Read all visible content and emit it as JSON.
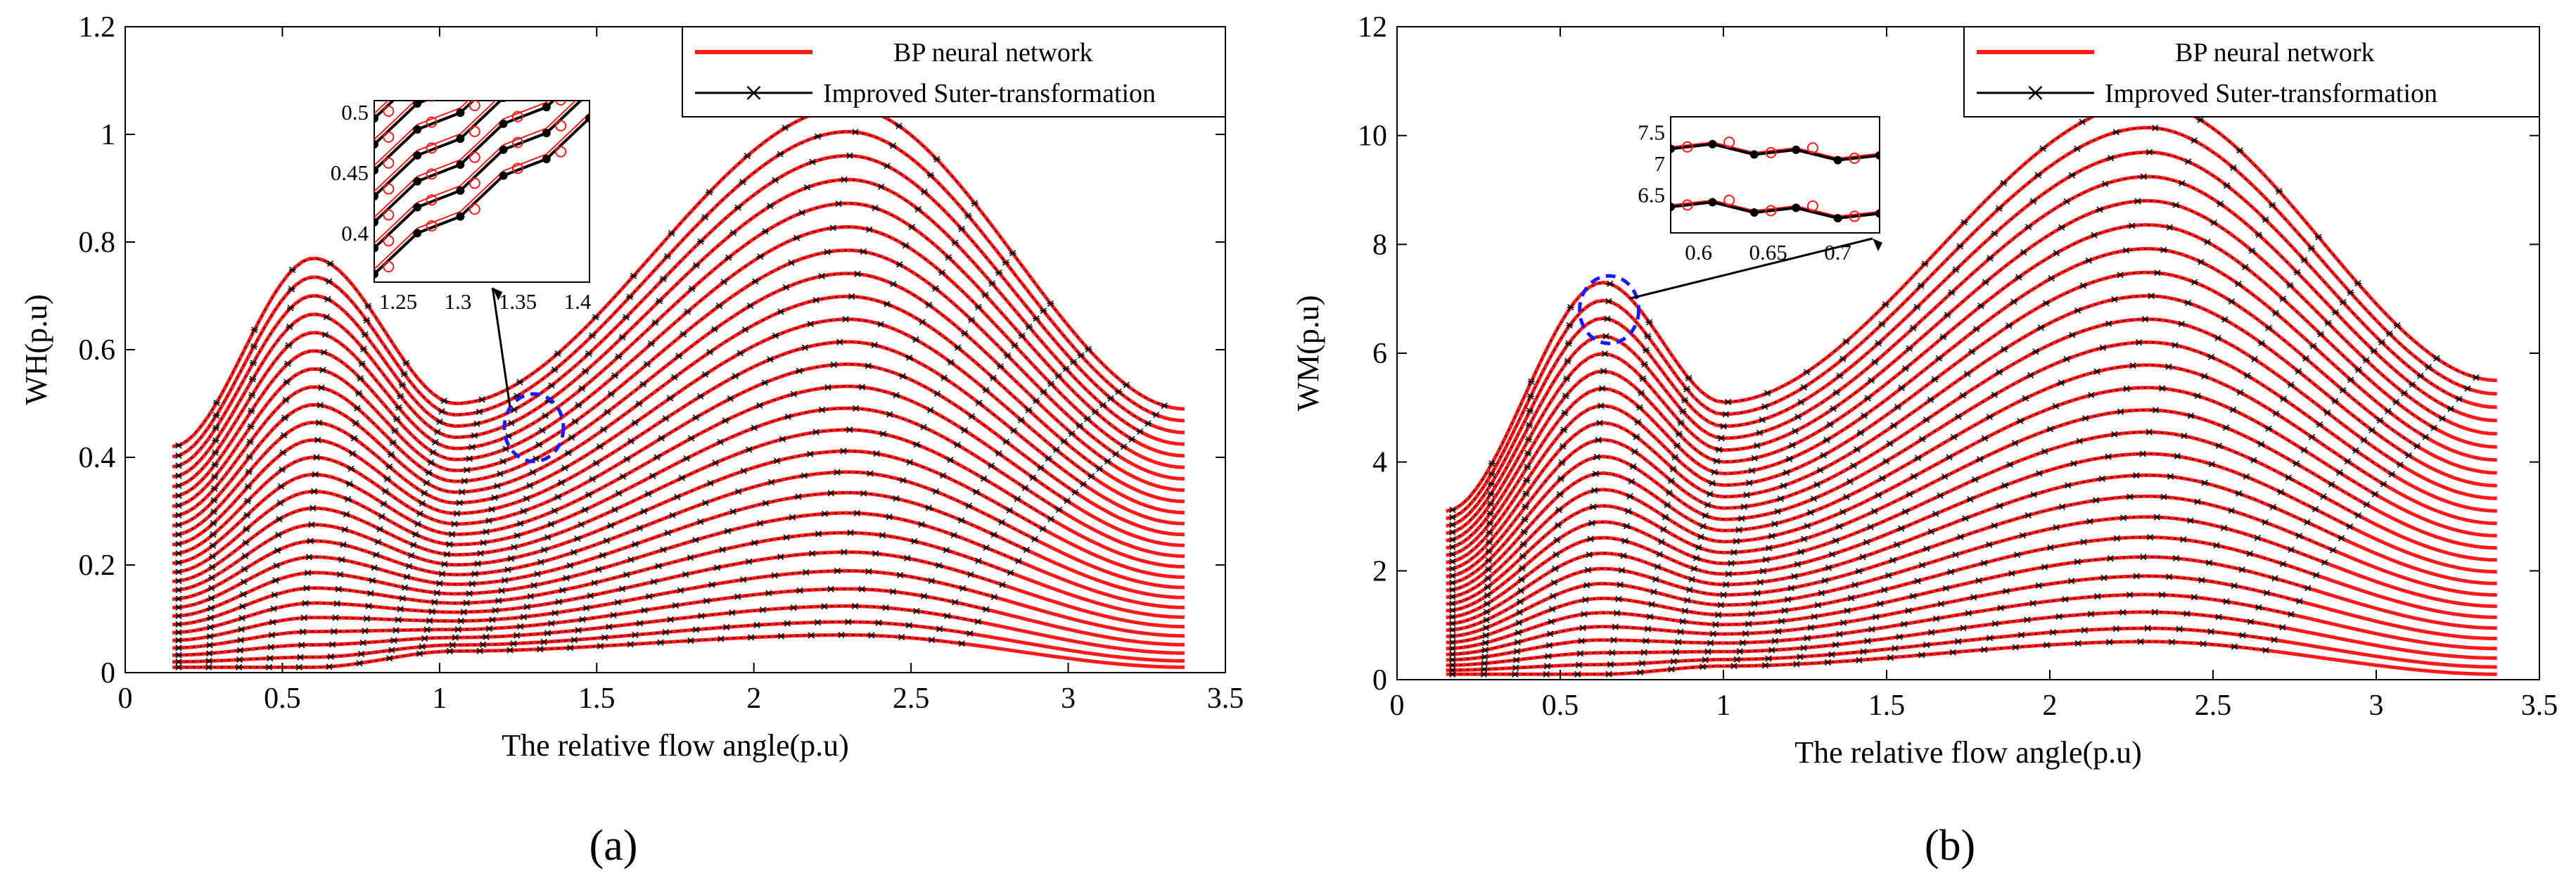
{
  "figure": {
    "panel_labels": [
      "(a)",
      "(b)"
    ]
  },
  "colors": {
    "bp": "#ff1a1a",
    "suter": "#000000",
    "highlight": "#1a1aff"
  },
  "chart_data": [
    {
      "type": "line",
      "panel_label": "(a)",
      "title": "",
      "xlabel": "The relative flow angle(p.u)",
      "ylabel": "WH(p.u)",
      "xlim": [
        0,
        3.5
      ],
      "ylim": [
        0,
        1.2
      ],
      "xticks": [
        0,
        0.5,
        1,
        1.5,
        2,
        2.5,
        3,
        3.5
      ],
      "xtick_labels": [
        "0",
        "0.5",
        "1",
        "1.5",
        "2",
        "2.5",
        "3",
        "3.5"
      ],
      "yticks": [
        0,
        0.2,
        0.4,
        0.6,
        0.8,
        1.0,
        1.2
      ],
      "ytick_labels": [
        "0",
        "0.2",
        "0.4",
        "0.6",
        "0.8",
        "1",
        "1.2"
      ],
      "legend": {
        "position": "top-right",
        "entries": [
          {
            "label": "BP neural network",
            "style": "red line"
          },
          {
            "label": "Improved Suter-transformation",
            "style": "black line with asterisk markers"
          }
        ]
      },
      "x_range": [
        0.15,
        3.37
      ],
      "curve_count": 26,
      "family": {
        "peak1": {
          "x": 0.6,
          "y_top": 0.77,
          "y_bottom": 0.01
        },
        "valley": {
          "x": 1.05,
          "y_top": 0.5,
          "y_bottom": 0.04
        },
        "peak2": {
          "x": 2.3,
          "y_top": 1.05,
          "y_bottom": 0.07
        },
        "start_y": {
          "top": 0.42,
          "bottom": 0.01
        },
        "end_y": {
          "top": 0.49,
          "bottom": 0.01
        }
      },
      "annotation": {
        "type": "dashed ellipse",
        "center": [
          1.3,
          0.455
        ],
        "note": "zoomed region"
      },
      "inset": {
        "xlim": [
          1.23,
          1.41
        ],
        "ylim": [
          0.36,
          0.51
        ],
        "xticks": [
          1.25,
          1.3,
          1.35,
          1.4
        ],
        "xtick_labels": [
          "1.25",
          "1.3",
          "1.35",
          "1.4"
        ],
        "yticks": [
          0.4,
          0.45,
          0.5
        ],
        "ytick_labels": [
          "0.4",
          "0.45",
          "0.5"
        ]
      }
    },
    {
      "type": "line",
      "panel_label": "(b)",
      "title": "",
      "xlabel": "The relative flow angle(p.u)",
      "ylabel": "WM(p.u)",
      "xlim": [
        0,
        3.5
      ],
      "ylim": [
        0,
        12
      ],
      "xticks": [
        0,
        0.5,
        1,
        1.5,
        2,
        2.5,
        3,
        3.5
      ],
      "xtick_labels": [
        "0",
        "0.5",
        "1",
        "1.5",
        "2",
        "2.5",
        "3",
        "3.5"
      ],
      "yticks": [
        0,
        2,
        4,
        6,
        8,
        10,
        12
      ],
      "ytick_labels": [
        "0",
        "2",
        "4",
        "6",
        "8",
        "10",
        "12"
      ],
      "legend": {
        "position": "top-right",
        "entries": [
          {
            "label": "BP neural network",
            "style": "red line"
          },
          {
            "label": "Improved Suter-transformation",
            "style": "black line with asterisk markers"
          }
        ]
      },
      "x_range": [
        0.15,
        3.37
      ],
      "curve_count": 26,
      "family": {
        "peak1": {
          "x": 0.63,
          "y_top": 7.3,
          "y_bottom": 0.1
        },
        "valley": {
          "x": 1.0,
          "y_top": 5.1,
          "y_bottom": 0.25
        },
        "peak2": {
          "x": 2.3,
          "y_top": 10.6,
          "y_bottom": 0.7
        },
        "start_y": {
          "top": 3.1,
          "bottom": 0.1
        },
        "end_y": {
          "top": 5.5,
          "bottom": 0.1
        }
      },
      "annotation": {
        "type": "dashed ellipse",
        "center": [
          0.65,
          6.8
        ],
        "note": "zoomed region"
      },
      "inset": {
        "xlim": [
          0.58,
          0.73
        ],
        "ylim": [
          5.9,
          7.75
        ],
        "xticks": [
          0.6,
          0.65,
          0.7
        ],
        "xtick_labels": [
          "0.6",
          "0.65",
          "0.7"
        ],
        "yticks": [
          6.5,
          7,
          7.5
        ],
        "ytick_labels": [
          "6.5",
          "7",
          "7.5"
        ]
      }
    }
  ]
}
